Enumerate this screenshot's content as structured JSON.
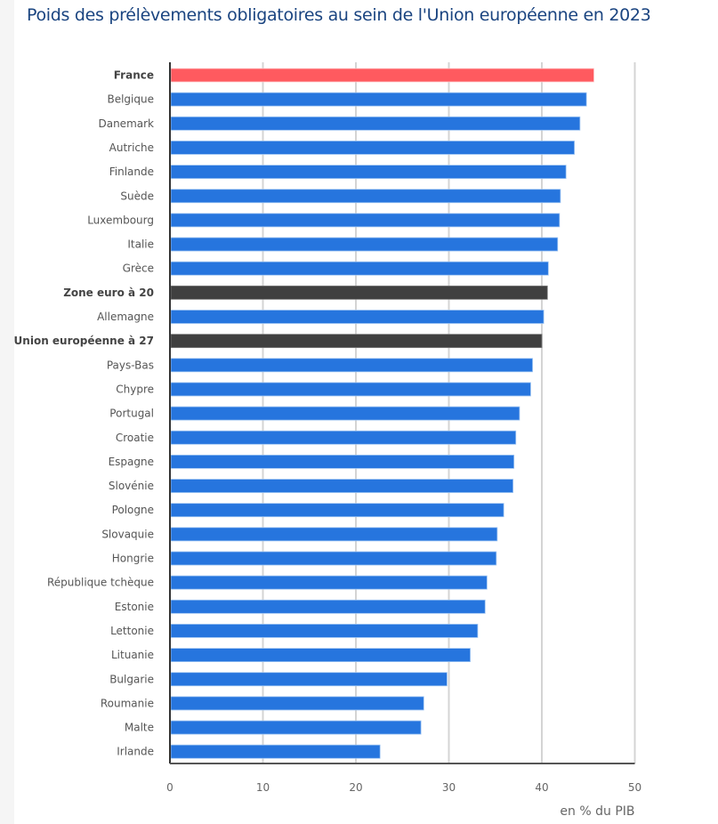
{
  "page": {
    "title": "Poids des prélèvements obligatoires au sein de l'Union européenne en 2023"
  },
  "colors": {
    "highlight": "#ff5a5f",
    "country": "#2675de",
    "aggregate": "#404040",
    "title": "#1a4480",
    "grid": "#d4d4d4",
    "axis": "#555555"
  },
  "chart_data": {
    "type": "bar",
    "orientation": "horizontal",
    "title": "Poids des prélèvements obligatoires au sein de l'Union européenne en 2023",
    "xlabel": "en % du PIB",
    "ylabel": "",
    "xlim": [
      0,
      50
    ],
    "xticks": [
      0,
      10,
      20,
      30,
      40,
      50
    ],
    "grid": true,
    "legend": "none",
    "categories": [
      "France",
      "Belgique",
      "Danemark",
      "Autriche",
      "Finlande",
      "Suède",
      "Luxembourg",
      "Italie",
      "Grèce",
      "Zone euro à 20",
      "Allemagne",
      "Union européenne à 27",
      "Pays-Bas",
      "Chypre",
      "Portugal",
      "Croatie",
      "Espagne",
      "Slovénie",
      "Pologne",
      "Slovaquie",
      "Hongrie",
      "République tchèque",
      "Estonie",
      "Lettonie",
      "Lituanie",
      "Bulgarie",
      "Roumanie",
      "Malte",
      "Irlande"
    ],
    "values": [
      45.6,
      44.8,
      44.1,
      43.5,
      42.6,
      42.0,
      41.9,
      41.7,
      40.7,
      40.6,
      40.2,
      40.0,
      39.0,
      38.8,
      37.6,
      37.2,
      37.0,
      36.9,
      35.9,
      35.2,
      35.1,
      34.1,
      33.9,
      33.1,
      32.3,
      29.8,
      27.3,
      27.0,
      22.6
    ],
    "kinds": [
      "highlight",
      "country",
      "country",
      "country",
      "country",
      "country",
      "country",
      "country",
      "country",
      "aggregate",
      "country",
      "aggregate",
      "country",
      "country",
      "country",
      "country",
      "country",
      "country",
      "country",
      "country",
      "country",
      "country",
      "country",
      "country",
      "country",
      "country",
      "country",
      "country",
      "country"
    ]
  }
}
